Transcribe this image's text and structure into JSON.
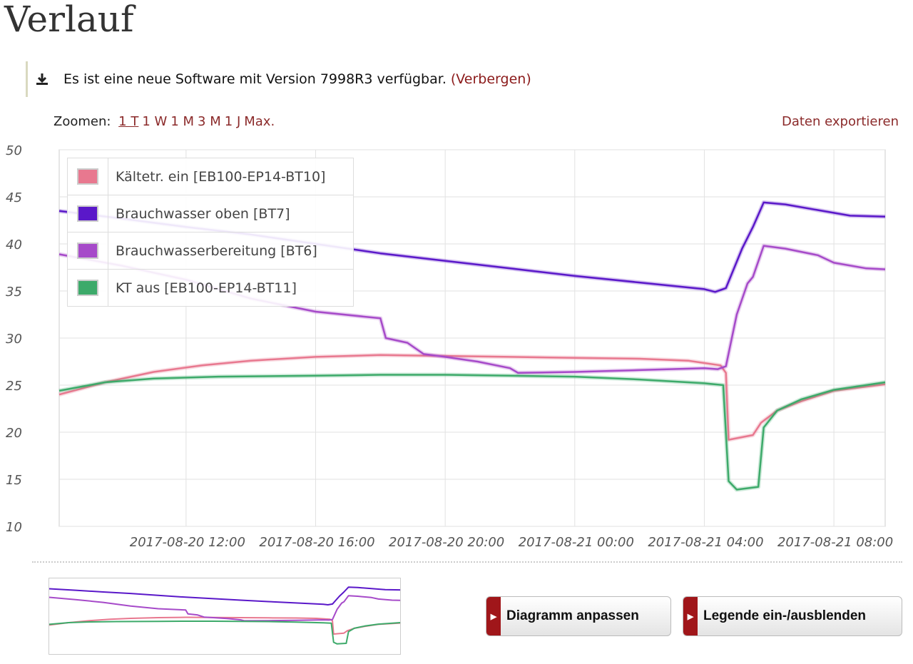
{
  "page": {
    "title": "Verlauf"
  },
  "notice": {
    "icon": "download-icon",
    "text": "Es ist eine neue Software mit Version 7998R3 verfügbar.",
    "hide_link": "(Verbergen)"
  },
  "zoom": {
    "label": "Zoomen:",
    "options": [
      "1 T",
      "1 W",
      "1 M",
      "3 M",
      "1 J",
      "Max."
    ],
    "active": "1 T"
  },
  "export_link": "Daten exportieren",
  "buttons": {
    "diagram": "Diagramm anpassen",
    "legend": "Legende ein-/ausblenden",
    "icon": "arrow-right-icon"
  },
  "chart_data": {
    "type": "line",
    "title": "",
    "xlabel": "",
    "ylabel": "",
    "ylim": [
      10,
      50
    ],
    "yticks": [
      10,
      15,
      20,
      25,
      30,
      35,
      40,
      45,
      50
    ],
    "xlim": [
      "2017-08-20 08:05",
      "2017-08-21 09:35"
    ],
    "xticks": [
      "2017-08-20 12:00",
      "2017-08-20 16:00",
      "2017-08-20 20:00",
      "2017-08-21 00:00",
      "2017-08-21 04:00",
      "2017-08-21 08:00"
    ],
    "grid": true,
    "legend_position": "top-left",
    "series": [
      {
        "name": "Kältetr. ein [EB100-EP14-BT10]",
        "color": "#e8788f",
        "points": [
          [
            "2017-08-20 08:05",
            24.0
          ],
          [
            "2017-08-20 09:30",
            25.3
          ],
          [
            "2017-08-20 11:00",
            26.4
          ],
          [
            "2017-08-20 12:30",
            27.1
          ],
          [
            "2017-08-20 14:00",
            27.6
          ],
          [
            "2017-08-20 16:00",
            28.0
          ],
          [
            "2017-08-20 18:00",
            28.2
          ],
          [
            "2017-08-20 20:00",
            28.1
          ],
          [
            "2017-08-20 22:00",
            28.0
          ],
          [
            "2017-08-21 00:00",
            27.9
          ],
          [
            "2017-08-21 02:00",
            27.8
          ],
          [
            "2017-08-21 03:30",
            27.6
          ],
          [
            "2017-08-21 04:30",
            27.1
          ],
          [
            "2017-08-21 04:40",
            26.3
          ],
          [
            "2017-08-21 04:45",
            19.2
          ],
          [
            "2017-08-21 05:30",
            19.7
          ],
          [
            "2017-08-21 05:45",
            21.0
          ],
          [
            "2017-08-21 06:15",
            22.3
          ],
          [
            "2017-08-21 07:00",
            23.3
          ],
          [
            "2017-08-21 08:00",
            24.4
          ],
          [
            "2017-08-21 09:35",
            25.1
          ]
        ]
      },
      {
        "name": "Brauchwasser oben [BT7]",
        "color": "#5a18c9",
        "points": [
          [
            "2017-08-20 08:05",
            43.5
          ],
          [
            "2017-08-20 10:00",
            42.7
          ],
          [
            "2017-08-20 12:00",
            41.8
          ],
          [
            "2017-08-20 14:00",
            41.0
          ],
          [
            "2017-08-20 16:00",
            40.0
          ],
          [
            "2017-08-20 18:00",
            39.0
          ],
          [
            "2017-08-20 20:00",
            38.2
          ],
          [
            "2017-08-20 22:00",
            37.4
          ],
          [
            "2017-08-21 00:00",
            36.6
          ],
          [
            "2017-08-21 02:00",
            35.9
          ],
          [
            "2017-08-21 04:00",
            35.2
          ],
          [
            "2017-08-21 04:20",
            34.9
          ],
          [
            "2017-08-21 04:40",
            35.3
          ],
          [
            "2017-08-21 05:10",
            39.5
          ],
          [
            "2017-08-21 05:30",
            41.8
          ],
          [
            "2017-08-21 05:50",
            44.4
          ],
          [
            "2017-08-21 06:30",
            44.2
          ],
          [
            "2017-08-21 07:30",
            43.6
          ],
          [
            "2017-08-21 08:30",
            43.0
          ],
          [
            "2017-08-21 09:35",
            42.9
          ]
        ]
      },
      {
        "name": "Brauchwasserbereitung [BT6]",
        "color": "#a64ac9",
        "points": [
          [
            "2017-08-20 08:05",
            38.9
          ],
          [
            "2017-08-20 10:00",
            37.7
          ],
          [
            "2017-08-20 12:00",
            36.2
          ],
          [
            "2017-08-20 14:00",
            34.2
          ],
          [
            "2017-08-20 16:00",
            32.8
          ],
          [
            "2017-08-20 18:00",
            32.1
          ],
          [
            "2017-08-20 18:10",
            30.0
          ],
          [
            "2017-08-20 18:50",
            29.5
          ],
          [
            "2017-08-20 19:20",
            28.3
          ],
          [
            "2017-08-20 20:00",
            28.0
          ],
          [
            "2017-08-20 21:00",
            27.5
          ],
          [
            "2017-08-20 22:00",
            26.8
          ],
          [
            "2017-08-20 22:15",
            26.3
          ],
          [
            "2017-08-21 00:00",
            26.4
          ],
          [
            "2017-08-21 02:00",
            26.6
          ],
          [
            "2017-08-21 04:00",
            26.8
          ],
          [
            "2017-08-21 04:25",
            26.7
          ],
          [
            "2017-08-21 04:40",
            27.0
          ],
          [
            "2017-08-21 05:00",
            32.5
          ],
          [
            "2017-08-21 05:20",
            35.8
          ],
          [
            "2017-08-21 05:30",
            36.5
          ],
          [
            "2017-08-21 05:50",
            39.8
          ],
          [
            "2017-08-21 06:30",
            39.5
          ],
          [
            "2017-08-21 07:30",
            38.8
          ],
          [
            "2017-08-21 08:00",
            38.0
          ],
          [
            "2017-08-21 09:00",
            37.4
          ],
          [
            "2017-08-21 09:35",
            37.3
          ]
        ]
      },
      {
        "name": "KT aus [EB100-EP14-BT11]",
        "color": "#3daa6a",
        "points": [
          [
            "2017-08-20 08:05",
            24.4
          ],
          [
            "2017-08-20 09:30",
            25.3
          ],
          [
            "2017-08-20 11:00",
            25.7
          ],
          [
            "2017-08-20 13:00",
            25.9
          ],
          [
            "2017-08-20 16:00",
            26.0
          ],
          [
            "2017-08-20 18:00",
            26.1
          ],
          [
            "2017-08-20 20:00",
            26.1
          ],
          [
            "2017-08-20 22:00",
            26.0
          ],
          [
            "2017-08-21 00:00",
            25.9
          ],
          [
            "2017-08-21 02:00",
            25.6
          ],
          [
            "2017-08-21 04:00",
            25.2
          ],
          [
            "2017-08-21 04:35",
            25.0
          ],
          [
            "2017-08-21 04:45",
            14.8
          ],
          [
            "2017-08-21 05:00",
            13.9
          ],
          [
            "2017-08-21 05:40",
            14.2
          ],
          [
            "2017-08-21 05:50",
            20.5
          ],
          [
            "2017-08-21 06:15",
            22.3
          ],
          [
            "2017-08-21 07:00",
            23.5
          ],
          [
            "2017-08-21 08:00",
            24.5
          ],
          [
            "2017-08-21 09:35",
            25.3
          ]
        ]
      }
    ]
  }
}
